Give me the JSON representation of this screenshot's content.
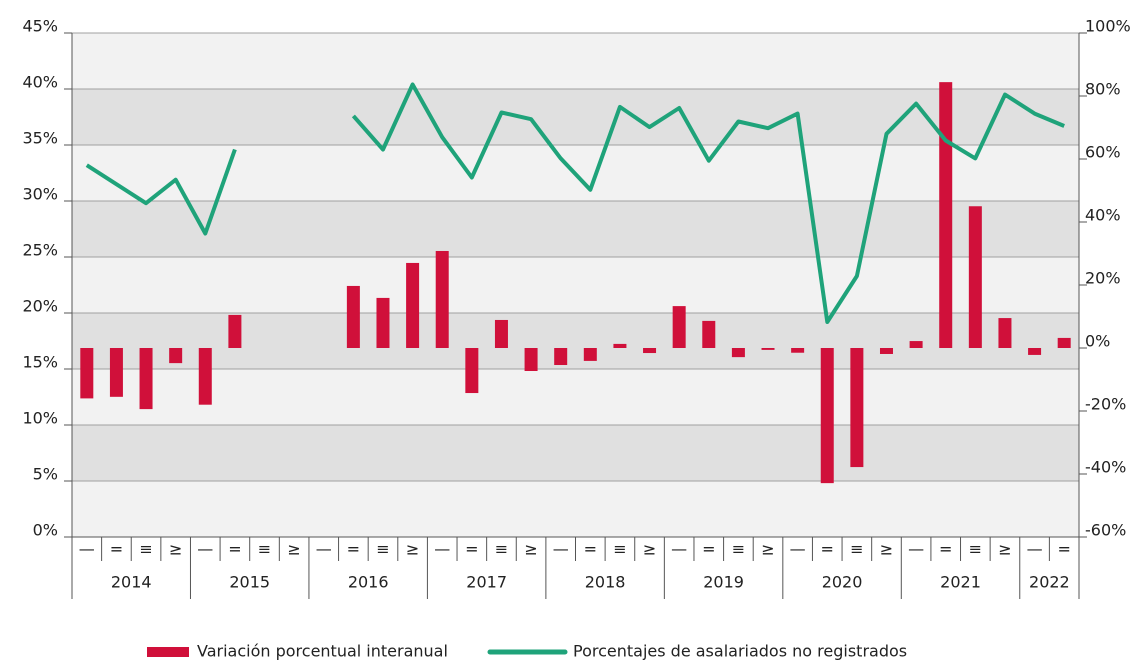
{
  "chart_data": {
    "type": "bar",
    "categories": [
      "—",
      "=",
      "≡",
      "≥",
      "—",
      "=",
      "≡",
      "≥",
      "—",
      "=",
      "≡",
      "≥",
      "—",
      "=",
      "≡",
      "≥",
      "—",
      "=",
      "≡",
      "≥",
      "—",
      "=",
      "≡",
      "≥",
      "—",
      "=",
      "≡",
      "≥",
      "—",
      "=",
      "≡",
      "≥",
      "—",
      "="
    ],
    "years": [
      "2014",
      "2015",
      "2016",
      "2017",
      "2018",
      "2019",
      "2020",
      "2021",
      "2022"
    ],
    "series": [
      {
        "name": "Variación porcentual interanual",
        "type": "bar",
        "axis": "y2",
        "color": "#d0103a",
        "values": [
          -16,
          -15.5,
          -19.4,
          -4.8,
          -18,
          10.5,
          null,
          null,
          null,
          19.7,
          15.9,
          27,
          30.8,
          -14.3,
          8.9,
          -7.3,
          -5.4,
          -4.1,
          1.3,
          -1.6,
          13.3,
          8.6,
          -2.9,
          -0.6,
          -1.5,
          -42.9,
          -37.8,
          -1.9,
          2.2,
          84.4,
          45,
          9.5,
          -2.2,
          3.2
        ]
      },
      {
        "name": "Porcentajes de asalariados no registrados",
        "type": "line",
        "color": "#1fa37a",
        "values": [
          33.2,
          31.5,
          29.8,
          31.9,
          27.1,
          34.6,
          null,
          null,
          null,
          37.6,
          34.6,
          40.4,
          35.7,
          32.1,
          37.9,
          37.3,
          33.8,
          31.0,
          38.4,
          36.6,
          38.3,
          33.6,
          37.1,
          36.5,
          37.8,
          19.2,
          23.3,
          36.0,
          38.7,
          35.4,
          33.8,
          39.5,
          37.8,
          36.7
        ]
      }
    ],
    "ylim": [
      0,
      45
    ],
    "yticks": [
      {
        "value": 0,
        "label": "0%"
      },
      {
        "value": 5,
        "label": "5%"
      },
      {
        "value": 10,
        "label": "10%"
      },
      {
        "value": 15,
        "label": "15%"
      },
      {
        "value": 20,
        "label": "20%"
      },
      {
        "value": 25,
        "label": "25%"
      },
      {
        "value": 30,
        "label": "30%"
      },
      {
        "value": 35,
        "label": "35%"
      },
      {
        "value": 40,
        "label": "40%"
      },
      {
        "value": 45,
        "label": "45%"
      }
    ],
    "y2lim": [
      -60,
      100
    ],
    "y2ticks": [
      {
        "value": -60,
        "label": "-60%"
      },
      {
        "value": -40,
        "label": "-40%"
      },
      {
        "value": -20,
        "label": "-20%"
      },
      {
        "value": 0,
        "label": "0%"
      },
      {
        "value": 20,
        "label": "20%"
      },
      {
        "value": 40,
        "label": "40%"
      },
      {
        "value": 60,
        "label": "60%"
      },
      {
        "value": 80,
        "label": "80%"
      },
      {
        "value": 100,
        "label": "100%"
      }
    ],
    "grid": true,
    "legend": "bottom"
  }
}
